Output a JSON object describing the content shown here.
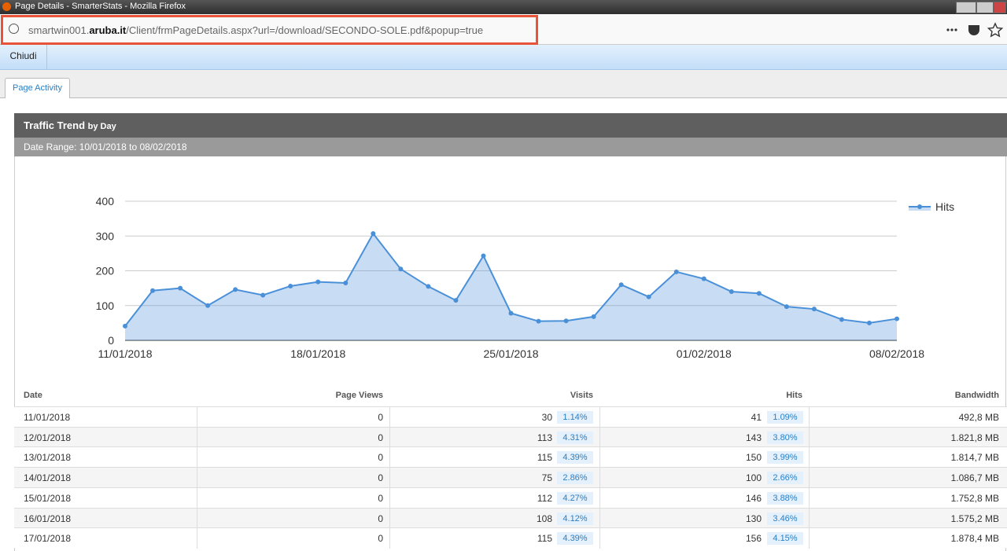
{
  "window": {
    "title": "Page Details - SmarterStats - Mozilla Firefox"
  },
  "address_bar": {
    "url_prefix": "smartwin001.",
    "url_domain": "aruba.it",
    "url_path": "/Client/frmPageDetails.aspx?url=/download/SECONDO-SOLE.pdf&popup=true"
  },
  "toolbar": {
    "close_button": "Chiudi"
  },
  "tabs": [
    "Page Activity"
  ],
  "panel": {
    "title": "Traffic Trend",
    "title_suffix": "by Day",
    "date_range": "Date Range: 10/01/2018 to 08/02/2018"
  },
  "chart_data": {
    "type": "line",
    "categories": [
      "11/01/2018",
      null,
      null,
      null,
      null,
      null,
      null,
      "18/01/2018",
      null,
      null,
      null,
      null,
      null,
      null,
      "25/01/2018",
      null,
      null,
      null,
      null,
      null,
      null,
      "01/02/2018",
      null,
      null,
      null,
      null,
      null,
      null,
      "08/02/2018"
    ],
    "series": [
      {
        "name": "Hits",
        "color": "#4a90d9",
        "values": [
          41,
          143,
          150,
          100,
          146,
          130,
          156,
          168,
          165,
          307,
          205,
          155,
          115,
          243,
          78,
          55,
          56,
          68,
          160,
          125,
          197,
          177,
          140,
          135,
          97,
          90,
          60,
          50,
          62
        ]
      }
    ],
    "ylim": [
      0,
      400
    ],
    "yticks": [
      0,
      100,
      200,
      300,
      400
    ],
    "grid": true,
    "area": true,
    "legend": "top-right"
  },
  "table": {
    "columns": [
      "Date",
      "Page Views",
      "Visits",
      "Hits",
      "Bandwidth"
    ],
    "rows": [
      [
        "11/01/2018",
        0,
        30,
        "1.14%",
        41,
        "1.09%",
        "492,8 MB"
      ],
      [
        "12/01/2018",
        0,
        113,
        "4.31%",
        143,
        "3.80%",
        "1.821,8 MB"
      ],
      [
        "13/01/2018",
        0,
        115,
        "4.39%",
        150,
        "3.99%",
        "1.814,7 MB"
      ],
      [
        "14/01/2018",
        0,
        75,
        "2.86%",
        100,
        "2.66%",
        "1.086,7 MB"
      ],
      [
        "15/01/2018",
        0,
        112,
        "4.27%",
        146,
        "3.88%",
        "1.752,8 MB"
      ],
      [
        "16/01/2018",
        0,
        108,
        "4.12%",
        130,
        "3.46%",
        "1.575,2 MB"
      ],
      [
        "17/01/2018",
        0,
        115,
        "4.39%",
        156,
        "4.15%",
        "1.878,4 MB"
      ]
    ]
  }
}
